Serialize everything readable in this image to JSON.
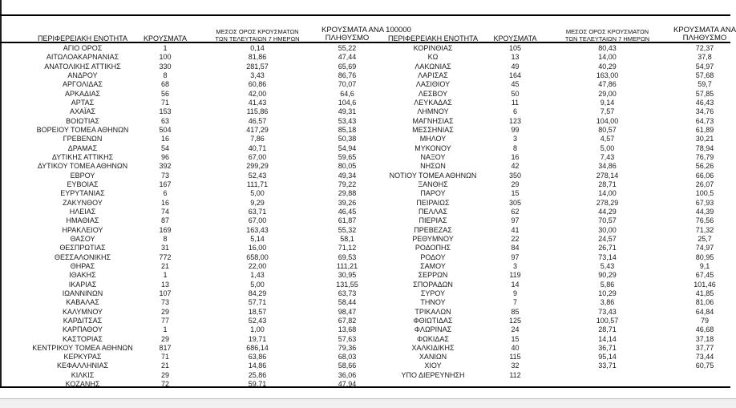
{
  "meta": {
    "description": "Daily COVID-19 cases per Greek regional unit, two side-by-side table panels",
    "colors": {
      "background": "#ffffff",
      "text": "#1a1a1a",
      "border": "#000000",
      "faint_border": "#b5b5b5",
      "bottom_strip": "#f1f1f1"
    }
  },
  "headers": {
    "region": "ΠΕΡΙΦΕΡΕΙΑΚΗ ΕΝΟΤΗΤΑ",
    "cases": "ΚΡΟΥΣΜΑΤΑ",
    "avg7_line1": "ΜΕΣΟΣ ΟΡΟΣ ΚΡΟΥΣΜΑΤΩΝ",
    "avg7_line2": "ΤΩΝ ΤΕΛΕΥΤΑΙΩΝ 7 ΗΜΕΡΩΝ",
    "per100k_line1": "ΚΡΟΥΣΜΑΤΑ ΑΝΑ 100000",
    "per100k_line2": "ΠΛΗΘΥΣΜΟ"
  },
  "left_table": {
    "rows": [
      [
        "ΑΓΙΟ ΟΡΟΣ",
        "1",
        "0,14",
        "55,22"
      ],
      [
        "ΑΙΤΩΛΟΑΚΑΡΝΑΝΙΑΣ",
        "100",
        "81,86",
        "47,44"
      ],
      [
        "ΑΝΑΤΟΛΙΚΗΣ ΑΤΤΙΚΗΣ",
        "330",
        "281,57",
        "65,69"
      ],
      [
        "ΑΝΔΡΟΥ",
        "8",
        "3,43",
        "86,76"
      ],
      [
        "ΑΡΓΟΛΙΔΑΣ",
        "68",
        "60,86",
        "70,07"
      ],
      [
        "ΑΡΚΑΔΙΑΣ",
        "56",
        "42,00",
        "64,6"
      ],
      [
        "ΑΡΤΑΣ",
        "71",
        "41,43",
        "104,6"
      ],
      [
        "ΑΧΑΪΑΣ",
        "153",
        "115,86",
        "49,31"
      ],
      [
        "ΒΟΙΩΤΙΑΣ",
        "63",
        "46,57",
        "53,43"
      ],
      [
        "ΒΟΡΕΙΟΥ ΤΟΜΕΑ ΑΘΗΝΩΝ",
        "504",
        "417,29",
        "85,18"
      ],
      [
        "ΓΡΕΒΕΝΩΝ",
        "16",
        "7,86",
        "50,38"
      ],
      [
        "ΔΡΑΜΑΣ",
        "54",
        "40,71",
        "54,94"
      ],
      [
        "ΔΥΤΙΚΗΣ ΑΤΤΙΚΗΣ",
        "96",
        "67,00",
        "59,65"
      ],
      [
        "ΔΥΤΙΚΟΥ ΤΟΜΕΑ ΑΘΗΝΩΝ",
        "392",
        "299,29",
        "80,05"
      ],
      [
        "ΕΒΡΟΥ",
        "73",
        "52,43",
        "49,34"
      ],
      [
        "ΕΥΒΟΙΑΣ",
        "167",
        "111,71",
        "79,22"
      ],
      [
        "ΕΥΡΥΤΑΝΙΑΣ",
        "6",
        "5,00",
        "29,88"
      ],
      [
        "ΖΑΚΥΝΘΟΥ",
        "16",
        "9,29",
        "39,26"
      ],
      [
        "ΗΛΕΙΑΣ",
        "74",
        "63,71",
        "46,45"
      ],
      [
        "ΗΜΑΘΙΑΣ",
        "87",
        "67,00",
        "61,87"
      ],
      [
        "ΗΡΑΚΛΕΙΟΥ",
        "169",
        "163,43",
        "55,32"
      ],
      [
        "ΘΑΣΟΥ",
        "8",
        "5,14",
        "58,1"
      ],
      [
        "ΘΕΣΠΡΩΤΙΑΣ",
        "31",
        "16,00",
        "71,12"
      ],
      [
        "ΘΕΣΣΑΛΟΝΙΚΗΣ",
        "772",
        "658,00",
        "69,53"
      ],
      [
        "ΘΗΡΑΣ",
        "21",
        "22,00",
        "111,21"
      ],
      [
        "ΙΘΑΚΗΣ",
        "1",
        "1,43",
        "30,95"
      ],
      [
        "ΙΚΑΡΙΑΣ",
        "13",
        "5,00",
        "131,55"
      ],
      [
        "ΙΩΑΝΝΙΝΩΝ",
        "107",
        "84,29",
        "63,73"
      ],
      [
        "ΚΑΒΑΛΑΣ",
        "73",
        "57,71",
        "58,44"
      ],
      [
        "ΚΑΛΥΜΝΟΥ",
        "29",
        "18,57",
        "98,47"
      ],
      [
        "ΚΑΡΔΙΤΣΑΣ",
        "77",
        "52,43",
        "67,82"
      ],
      [
        "ΚΑΡΠΑΘΟΥ",
        "1",
        "1,00",
        "13,68"
      ],
      [
        "ΚΑΣΤΟΡΙΑΣ",
        "29",
        "19,71",
        "57,63"
      ],
      [
        "ΚΕΝΤΡΙΚΟΥ ΤΟΜΕΑ ΑΘΗΝΩΝ",
        "817",
        "686,14",
        "79,36"
      ],
      [
        "ΚΕΡΚΥΡΑΣ",
        "71",
        "63,86",
        "68,03"
      ],
      [
        "ΚΕΦΑΛΛΗΝΙΑΣ",
        "21",
        "14,86",
        "58,66"
      ],
      [
        "ΚΙΛΚΙΣ",
        "29",
        "25,86",
        "36,06"
      ],
      [
        "ΚΟΖΑΝΗΣ",
        "72",
        "59,71",
        "47,94"
      ]
    ]
  },
  "right_table": {
    "rows": [
      [
        "ΚΟΡΙΝΘΙΑΣ",
        "105",
        "80,43",
        "72,37"
      ],
      [
        "ΚΩ",
        "13",
        "14,00",
        "37,8"
      ],
      [
        "ΛΑΚΩΝΙΑΣ",
        "49",
        "40,29",
        "54,97"
      ],
      [
        "ΛΑΡΙΣΑΣ",
        "164",
        "163,00",
        "57,68"
      ],
      [
        "ΛΑΣΙΘΙΟΥ",
        "45",
        "47,86",
        "59,7"
      ],
      [
        "ΛΕΣΒΟΥ",
        "50",
        "29,00",
        "57,85"
      ],
      [
        "ΛΕΥΚΑΔΑΣ",
        "11",
        "9,14",
        "46,43"
      ],
      [
        "ΛΗΜΝΟΥ",
        "6",
        "7,57",
        "34,76"
      ],
      [
        "ΜΑΓΝΗΣΙΑΣ",
        "123",
        "104,00",
        "64,73"
      ],
      [
        "ΜΕΣΣΗΝΙΑΣ",
        "99",
        "80,57",
        "61,89"
      ],
      [
        "ΜΗΛΟΥ",
        "3",
        "4,57",
        "30,21"
      ],
      [
        "ΜΥΚΟΝΟΥ",
        "8",
        "5,00",
        "78,94"
      ],
      [
        "ΝΑΞΟΥ",
        "16",
        "7,43",
        "76,79"
      ],
      [
        "ΝΗΣΩΝ",
        "42",
        "34,86",
        "56,26"
      ],
      [
        "ΝΟΤΙΟΥ ΤΟΜΕΑ ΑΘΗΝΩΝ",
        "350",
        "278,14",
        "66,06"
      ],
      [
        "ΞΑΝΘΗΣ",
        "29",
        "28,71",
        "26,07"
      ],
      [
        "ΠΑΡΟΥ",
        "15",
        "14,00",
        "100,5"
      ],
      [
        "ΠΕΙΡΑΙΩΣ",
        "305",
        "278,29",
        "67,93"
      ],
      [
        "ΠΕΛΛΑΣ",
        "62",
        "44,29",
        "44,39"
      ],
      [
        "ΠΙΕΡΙΑΣ",
        "97",
        "70,57",
        "76,56"
      ],
      [
        "ΠΡΕΒΕΖΑΣ",
        "41",
        "30,00",
        "71,32"
      ],
      [
        "ΡΕΘΥΜΝΟΥ",
        "22",
        "24,57",
        "25,7"
      ],
      [
        "ΡΟΔΟΠΗΣ",
        "84",
        "26,71",
        "74,97"
      ],
      [
        "ΡΟΔΟΥ",
        "97",
        "73,14",
        "80,95"
      ],
      [
        "ΣΑΜΟΥ",
        "3",
        "5,43",
        "9,1"
      ],
      [
        "ΣΕΡΡΩΝ",
        "119",
        "90,29",
        "67,45"
      ],
      [
        "ΣΠΟΡΑΔΩΝ",
        "14",
        "5,86",
        "101,46"
      ],
      [
        "ΣΥΡΟΥ",
        "9",
        "10,29",
        "41,85"
      ],
      [
        "ΤΗΝΟΥ",
        "7",
        "3,86",
        "81,06"
      ],
      [
        "ΤΡΙΚΑΛΩΝ",
        "85",
        "73,43",
        "64,84"
      ],
      [
        "ΦΘΙΩΤΙΔΑΣ",
        "125",
        "100,57",
        "79"
      ],
      [
        "ΦΛΩΡΙΝΑΣ",
        "24",
        "28,71",
        "46,68"
      ],
      [
        "ΦΩΚΙΔΑΣ",
        "15",
        "14,14",
        "37,18"
      ],
      [
        "ΧΑΛΚΙΔΙΚΗΣ",
        "40",
        "36,71",
        "37,77"
      ],
      [
        "ΧΑΝΙΩΝ",
        "115",
        "95,14",
        "73,44"
      ],
      [
        "ΧΙΟΥ",
        "32",
        "33,71",
        "60,75"
      ],
      [
        "ΥΠΟ ΔΙΕΡΕΥΝΗΣΗ",
        "112",
        "",
        ""
      ]
    ]
  }
}
